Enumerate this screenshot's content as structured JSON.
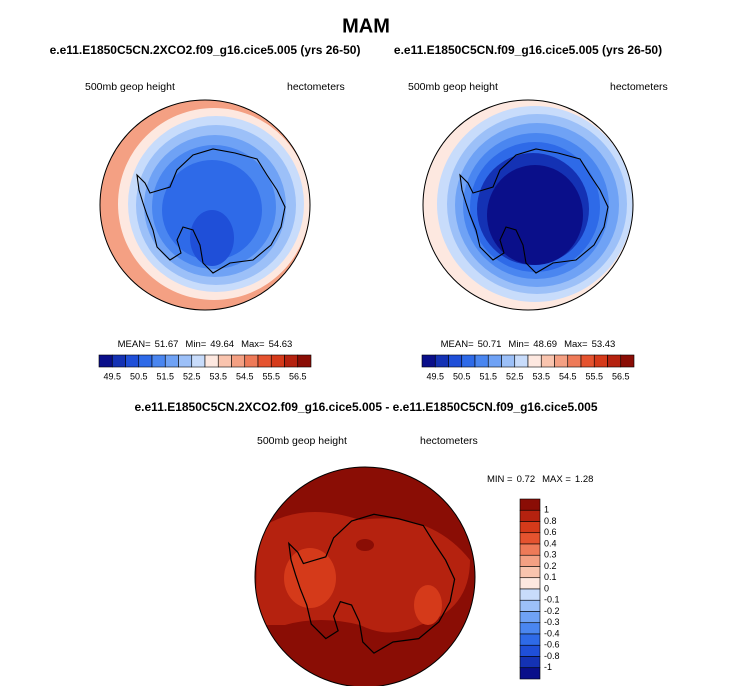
{
  "title": "MAM",
  "panels": [
    {
      "case": "e.e11.E1850C5CN.2XCO2.f09_g16.cice5.005 (yrs 26-50)",
      "variable": "500mb geop height",
      "units": "hectometers",
      "stats": [
        {
          "label": "MEAN=",
          "value": 51.67
        },
        {
          "label": "Min=",
          "value": 49.64
        },
        {
          "label": "Max=",
          "value": 54.63
        }
      ]
    },
    {
      "case": "e.e11.E1850C5CN.f09_g16.cice5.005 (yrs 26-50)",
      "variable": "500mb geop height",
      "units": "hectometers",
      "stats": [
        {
          "label": "MEAN=",
          "value": 50.71
        },
        {
          "label": "Min=",
          "value": 48.69
        },
        {
          "label": "Max=",
          "value": 53.43
        }
      ]
    }
  ],
  "colorbar": {
    "labels": [
      49.5,
      50.5,
      51.5,
      52.5,
      53.5,
      54.5,
      55.5,
      56.5
    ],
    "colors": [
      "#0a0f8a",
      "#1432b4",
      "#1f4fd8",
      "#2e6ae8",
      "#4a86f0",
      "#6fa2f5",
      "#9cc0f8",
      "#c8dcfb",
      "#fde8e0",
      "#f9c4ae",
      "#f4a083",
      "#ee7a58",
      "#e5532f",
      "#d53a1a",
      "#b5220f",
      "#8a0d05"
    ]
  },
  "difference": {
    "case": "e.e11.E1850C5CN.2XCO2.f09_g16.cice5.005 - e.e11.E1850C5CN.f09_g16.cice5.005",
    "variable": "500mb geop height",
    "units": "hectometers",
    "stats": [
      {
        "label": "MIN =",
        "value": 0.72
      },
      {
        "label": "MAX =",
        "value": 1.28
      }
    ],
    "colorbar": {
      "labels": [
        1,
        0.8,
        0.6,
        0.4,
        0.3,
        0.2,
        0.1,
        0,
        -0.1,
        -0.2,
        -0.3,
        -0.4,
        -0.6,
        -0.8,
        -1
      ],
      "colors": [
        "#8a0d05",
        "#b5220f",
        "#d53a1a",
        "#e5532f",
        "#ee7a58",
        "#f4a083",
        "#f9c4ae",
        "#fde8e0",
        "#c8dcfb",
        "#9cc0f8",
        "#6fa2f5",
        "#4a86f0",
        "#2e6ae8",
        "#1f4fd8",
        "#1432b4",
        "#0a0f8a"
      ]
    }
  }
}
